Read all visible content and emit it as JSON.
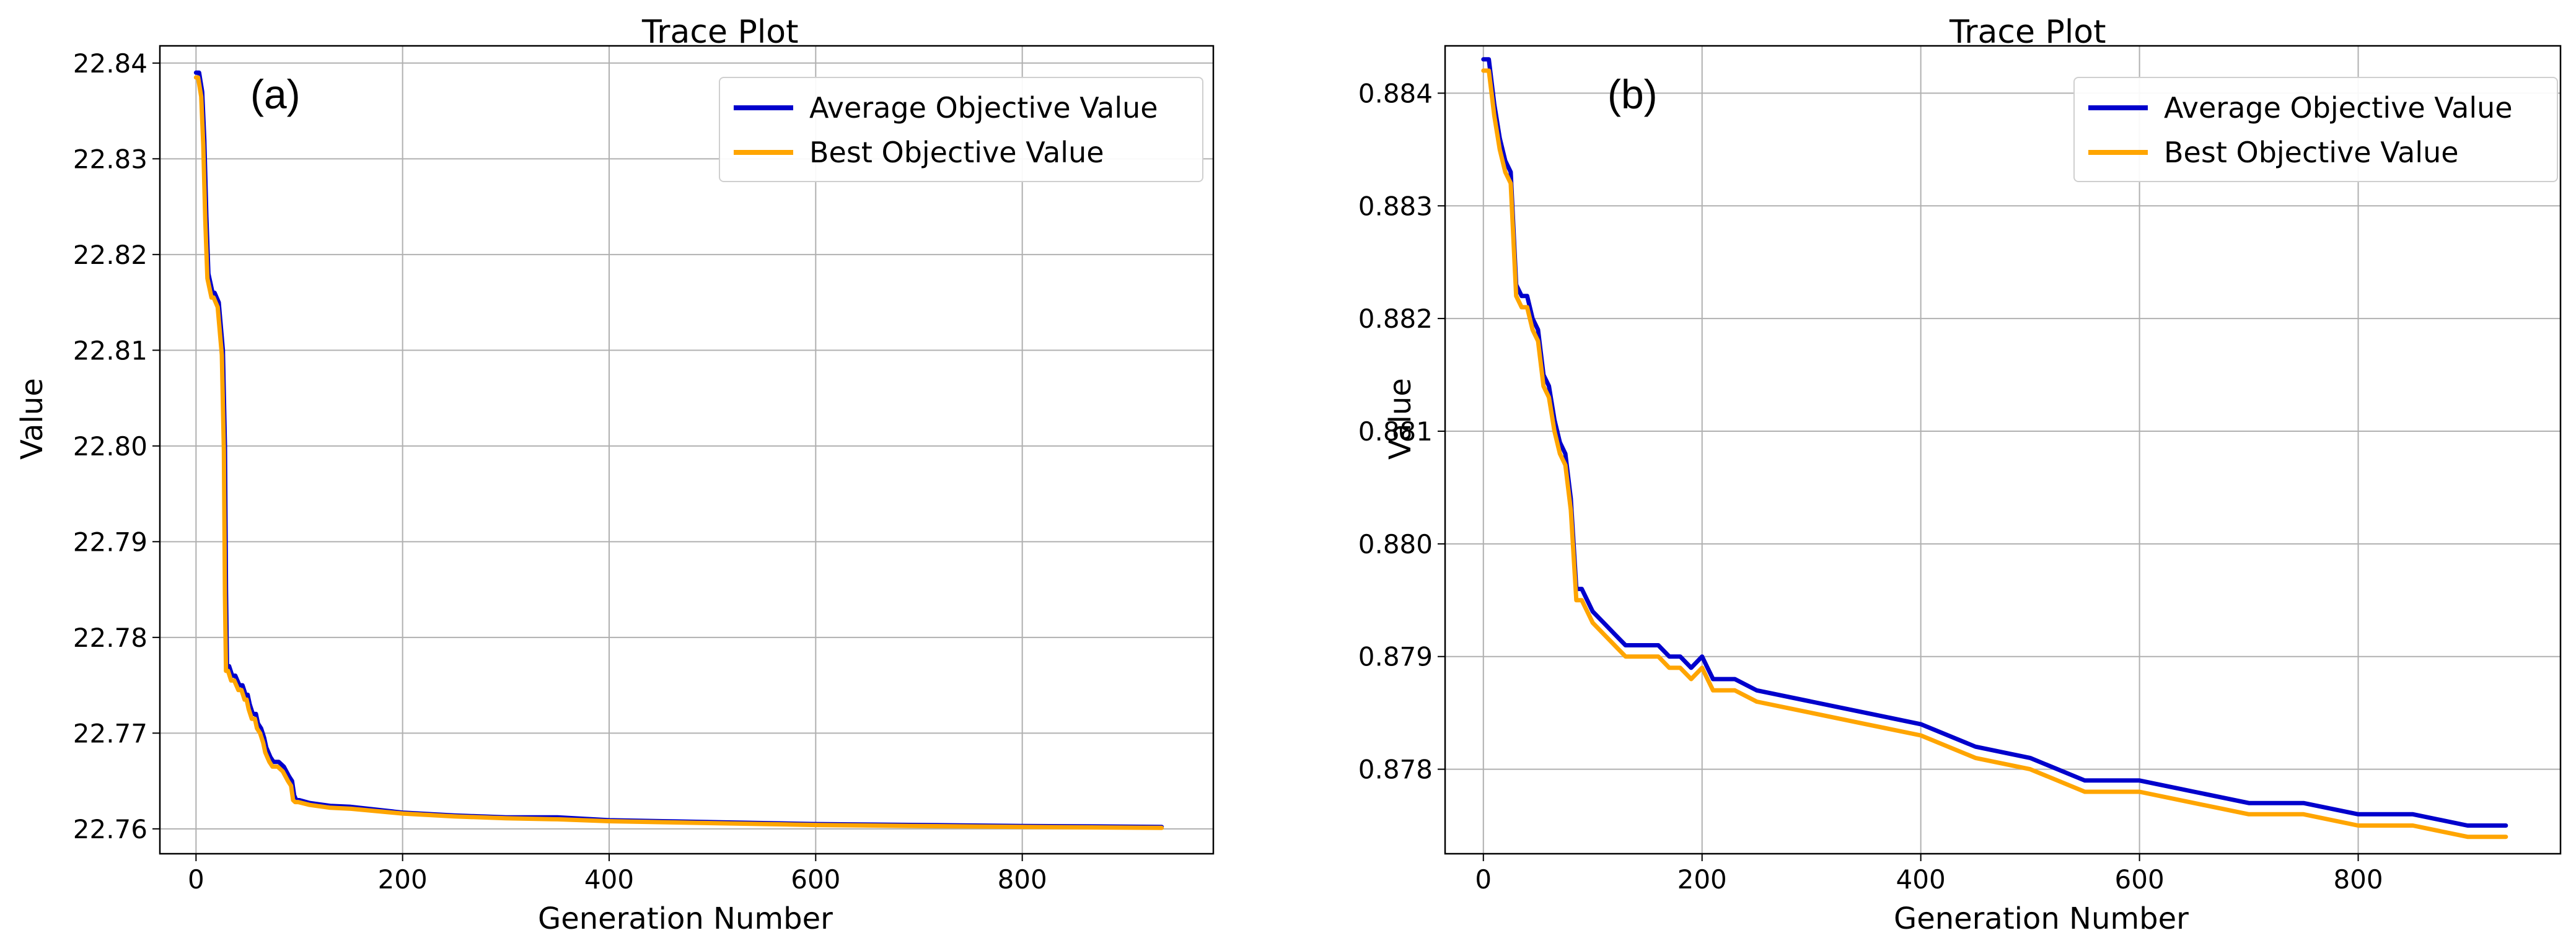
{
  "colors": {
    "average": "#0000cc",
    "best": "#ffa500",
    "grid": "#b0b0b0"
  },
  "chart_data": [
    {
      "type": "line",
      "panel_label": "(a)",
      "title": "Trace Plot",
      "xlabel": "Generation Number",
      "ylabel": "Value",
      "xlim": [
        -35,
        985
      ],
      "ylim": [
        22.7574,
        22.8418
      ],
      "xticks": [
        0,
        200,
        400,
        600,
        800
      ],
      "xtick_labels": [
        "0",
        "200",
        "400",
        "600",
        "800"
      ],
      "yticks": [
        22.76,
        22.77,
        22.78,
        22.79,
        22.8,
        22.81,
        22.82,
        22.83,
        22.84
      ],
      "ytick_labels": [
        "22.76",
        "22.77",
        "22.78",
        "22.79",
        "22.80",
        "22.81",
        "22.82",
        "22.83",
        "22.84"
      ],
      "grid": true,
      "legend_position": "top-right",
      "series": [
        {
          "name": "Average Objective Value",
          "color": "#0000cc",
          "x": [
            0,
            3,
            6,
            8,
            10,
            12,
            14,
            16,
            18,
            22,
            26,
            28,
            29,
            30,
            31,
            32,
            35,
            38,
            42,
            45,
            48,
            50,
            52,
            55,
            58,
            60,
            63,
            66,
            68,
            70,
            72,
            75,
            80,
            85,
            90,
            93,
            95,
            97,
            100,
            110,
            130,
            150,
            200,
            250,
            300,
            350,
            400,
            500,
            600,
            700,
            800,
            935
          ],
          "y": [
            22.839,
            22.839,
            22.837,
            22.832,
            22.824,
            22.818,
            22.817,
            22.816,
            22.816,
            22.815,
            22.81,
            22.8,
            22.785,
            22.777,
            22.777,
            22.777,
            22.776,
            22.776,
            22.775,
            22.775,
            22.774,
            22.774,
            22.773,
            22.772,
            22.772,
            22.771,
            22.7705,
            22.7695,
            22.7685,
            22.768,
            22.7675,
            22.767,
            22.767,
            22.7665,
            22.7655,
            22.765,
            22.7635,
            22.763,
            22.763,
            22.7627,
            22.7624,
            22.7623,
            22.7617,
            22.7614,
            22.7612,
            22.7612,
            22.7609,
            22.7607,
            22.7605,
            22.7604,
            22.7603,
            22.7602
          ]
        },
        {
          "name": "Best Objective Value",
          "color": "#ffa500",
          "x": [
            0,
            2,
            5,
            7,
            9,
            11,
            13,
            15,
            17,
            21,
            25,
            27,
            28,
            29,
            30,
            31,
            34,
            37,
            41,
            44,
            47,
            49,
            51,
            54,
            57,
            59,
            62,
            65,
            67,
            69,
            71,
            74,
            79,
            84,
            89,
            92,
            94,
            96,
            99,
            110,
            130,
            150,
            200,
            250,
            300,
            350,
            400,
            500,
            600,
            700,
            800,
            935
          ],
          "y": [
            22.8385,
            22.8385,
            22.8365,
            22.8315,
            22.8235,
            22.8175,
            22.8165,
            22.8155,
            22.8155,
            22.8145,
            22.8095,
            22.7995,
            22.7845,
            22.7765,
            22.7765,
            22.7765,
            22.7755,
            22.7755,
            22.7745,
            22.7745,
            22.7735,
            22.7735,
            22.7725,
            22.7715,
            22.7715,
            22.7705,
            22.77,
            22.769,
            22.768,
            22.7675,
            22.767,
            22.7665,
            22.7665,
            22.766,
            22.765,
            22.7645,
            22.763,
            22.7628,
            22.7628,
            22.7625,
            22.7622,
            22.7621,
            22.7616,
            22.7613,
            22.7611,
            22.761,
            22.7608,
            22.7606,
            22.7604,
            22.7603,
            22.7602,
            22.7601
          ]
        }
      ]
    },
    {
      "type": "line",
      "panel_label": "(b)",
      "title": "Trace Plot",
      "xlabel": "Generation Number",
      "ylabel": "Value",
      "xlim": [
        -35,
        985
      ],
      "ylim": [
        0.87725,
        0.88442
      ],
      "xticks": [
        0,
        200,
        400,
        600,
        800
      ],
      "xtick_labels": [
        "0",
        "200",
        "400",
        "600",
        "800"
      ],
      "yticks": [
        0.878,
        0.879,
        0.88,
        0.881,
        0.882,
        0.883,
        0.884
      ],
      "ytick_labels": [
        "0.878",
        "0.879",
        "0.880",
        "0.881",
        "0.882",
        "0.883",
        "0.884"
      ],
      "grid": true,
      "legend_position": "top-right",
      "series": [
        {
          "name": "Average Objective Value",
          "color": "#0000cc",
          "x": [
            0,
            5,
            10,
            15,
            20,
            25,
            30,
            35,
            40,
            45,
            50,
            55,
            60,
            65,
            70,
            75,
            80,
            85,
            90,
            95,
            100,
            110,
            120,
            130,
            140,
            150,
            160,
            170,
            180,
            190,
            200,
            205,
            210,
            230,
            250,
            300,
            350,
            400,
            450,
            500,
            550,
            600,
            650,
            700,
            750,
            800,
            850,
            900,
            935
          ],
          "y": [
            0.8843,
            0.8843,
            0.8839,
            0.8836,
            0.8834,
            0.8833,
            0.8823,
            0.8822,
            0.8822,
            0.882,
            0.8819,
            0.8815,
            0.8814,
            0.8811,
            0.8809,
            0.8808,
            0.8804,
            0.8796,
            0.8796,
            0.8795,
            0.8794,
            0.8793,
            0.8792,
            0.8791,
            0.8791,
            0.8791,
            0.8791,
            0.879,
            0.879,
            0.8789,
            0.879,
            0.8789,
            0.8788,
            0.8788,
            0.8787,
            0.8786,
            0.8785,
            0.8784,
            0.8782,
            0.8781,
            0.8779,
            0.8779,
            0.8778,
            0.8777,
            0.8777,
            0.8776,
            0.8776,
            0.8775,
            0.8775
          ]
        },
        {
          "name": "Best Objective Value",
          "color": "#ffa500",
          "x": [
            0,
            5,
            10,
            15,
            20,
            25,
            30,
            35,
            40,
            45,
            50,
            55,
            60,
            65,
            70,
            75,
            80,
            85,
            90,
            95,
            100,
            110,
            120,
            130,
            140,
            150,
            160,
            170,
            180,
            190,
            200,
            205,
            210,
            230,
            250,
            300,
            350,
            400,
            450,
            500,
            550,
            600,
            650,
            700,
            750,
            800,
            850,
            900,
            935
          ],
          "y": [
            0.8842,
            0.8842,
            0.8838,
            0.8835,
            0.8833,
            0.8832,
            0.8822,
            0.8821,
            0.8821,
            0.8819,
            0.8818,
            0.8814,
            0.8813,
            0.881,
            0.8808,
            0.8807,
            0.8803,
            0.8795,
            0.8795,
            0.8794,
            0.8793,
            0.8792,
            0.8791,
            0.879,
            0.879,
            0.879,
            0.879,
            0.8789,
            0.8789,
            0.8788,
            0.8789,
            0.8788,
            0.8787,
            0.8787,
            0.8786,
            0.8785,
            0.8784,
            0.8783,
            0.8781,
            0.878,
            0.8778,
            0.8778,
            0.8777,
            0.8776,
            0.8776,
            0.8775,
            0.8775,
            0.8774,
            0.8774
          ]
        }
      ]
    }
  ]
}
